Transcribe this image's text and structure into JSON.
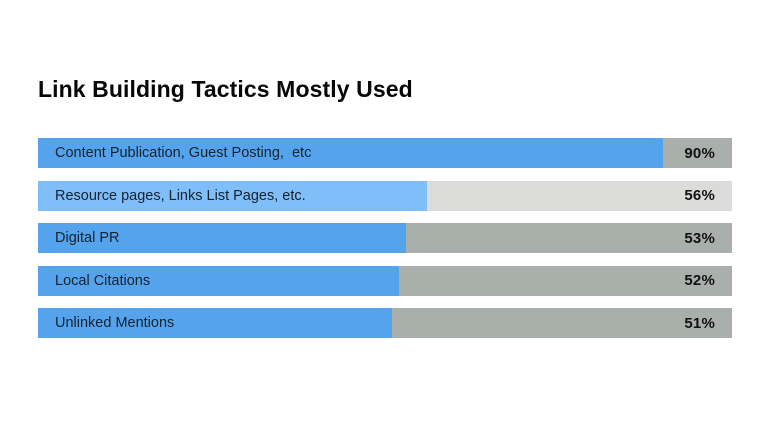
{
  "page": {
    "background": "#ffffff"
  },
  "header": {
    "title": "Link Building Tactics Mostly Used"
  },
  "chart_data": {
    "type": "bar",
    "orientation": "horizontal",
    "title": "Link Building Tactics Mostly Used",
    "categories": [
      "Content Publication, Guest Posting,  etc",
      "Resource pages, Links List Pages, etc.",
      "Digital PR",
      "Local Citations",
      "Unlinked Mentions"
    ],
    "values": [
      90,
      56,
      53,
      52,
      51
    ],
    "value_labels": [
      "90%",
      "56%",
      "53%",
      "52%",
      "51%"
    ],
    "xlim": [
      0,
      100
    ],
    "grid": false,
    "legend": false,
    "bar_colors": [
      "#55a3ec",
      "#7fbef8",
      "#55a3ec",
      "#55a3ec",
      "#55a3ec"
    ],
    "track_colors": [
      "#a9afab",
      "#dbdcd9",
      "#a9afab",
      "#a9afab",
      "#a9afab"
    ],
    "title_color": "#070707",
    "label_color": "#16222e",
    "value_label_color": "#121212"
  }
}
